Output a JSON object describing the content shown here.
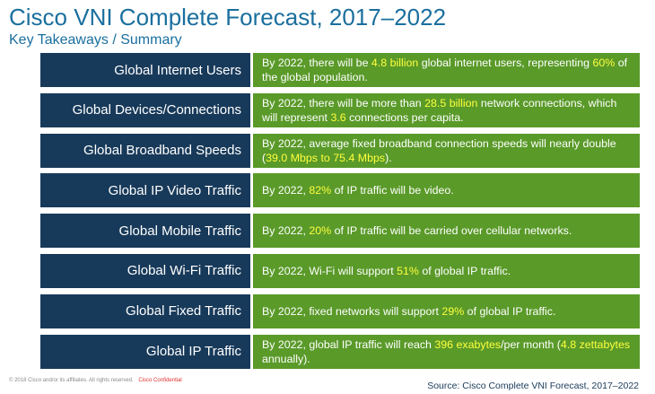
{
  "header": {
    "title": "Cisco VNI Complete Forecast, 2017–2022",
    "subtitle": "Key Takeaways / Summary"
  },
  "rows": [
    {
      "label": "Global Internet Users",
      "parts": [
        {
          "t": "By 2022, there will be ",
          "h": false
        },
        {
          "t": "4.8 billion",
          "h": true
        },
        {
          "t": " global internet users, representing ",
          "h": false
        },
        {
          "t": "60%",
          "h": true
        },
        {
          "t": " of the global population.",
          "h": false
        }
      ]
    },
    {
      "label": "Global Devices/Connections",
      "parts": [
        {
          "t": "By 2022, there will be more than ",
          "h": false
        },
        {
          "t": "28.5 billion",
          "h": true
        },
        {
          "t": " network connections, which will represent ",
          "h": false
        },
        {
          "t": "3.6",
          "h": true
        },
        {
          "t": " connections per capita.",
          "h": false
        }
      ]
    },
    {
      "label": "Global Broadband Speeds",
      "parts": [
        {
          "t": "By 2022, average fixed broadband connection speeds will nearly double (",
          "h": false
        },
        {
          "t": "39.0 Mbps to 75.4 Mbps",
          "h": true
        },
        {
          "t": ").",
          "h": false
        }
      ]
    },
    {
      "label": "Global IP Video Traffic",
      "parts": [
        {
          "t": "By 2022, ",
          "h": false
        },
        {
          "t": "82%",
          "h": true
        },
        {
          "t": " of IP traffic will be video.",
          "h": false
        }
      ]
    },
    {
      "label": "Global Mobile Traffic",
      "parts": [
        {
          "t": "By 2022, ",
          "h": false
        },
        {
          "t": "20%",
          "h": true
        },
        {
          "t": " of IP traffic will be carried over cellular networks.",
          "h": false
        }
      ]
    },
    {
      "label": "Global Wi-Fi Traffic",
      "parts": [
        {
          "t": "By 2022, Wi-Fi will support ",
          "h": false
        },
        {
          "t": "51%",
          "h": true
        },
        {
          "t": " of global IP traffic.",
          "h": false
        }
      ]
    },
    {
      "label": "Global Fixed Traffic",
      "parts": [
        {
          "t": "By 2022, fixed networks will support ",
          "h": false
        },
        {
          "t": "29%",
          "h": true
        },
        {
          "t": " of global IP traffic.",
          "h": false
        }
      ]
    },
    {
      "label": "Global IP Traffic",
      "parts": [
        {
          "t": "By 2022, global IP traffic will reach ",
          "h": false
        },
        {
          "t": "396 exabytes",
          "h": true
        },
        {
          "t": "/per month (",
          "h": false
        },
        {
          "t": "4.8 zettabytes",
          "h": true
        },
        {
          "t": " annually).",
          "h": false
        }
      ]
    }
  ],
  "footer": {
    "copyright": "© 2018  Cisco and/or its affiliates. All rights reserved.",
    "confidential": "Cisco Confidential",
    "source": "Source: Cisco Complete VNI Forecast, 2017–2022"
  },
  "colors": {
    "title": "#1a6f9e",
    "label_bg": "#183a5a",
    "desc_bg": "#5a9a29",
    "highlight": "#ffff3c"
  }
}
